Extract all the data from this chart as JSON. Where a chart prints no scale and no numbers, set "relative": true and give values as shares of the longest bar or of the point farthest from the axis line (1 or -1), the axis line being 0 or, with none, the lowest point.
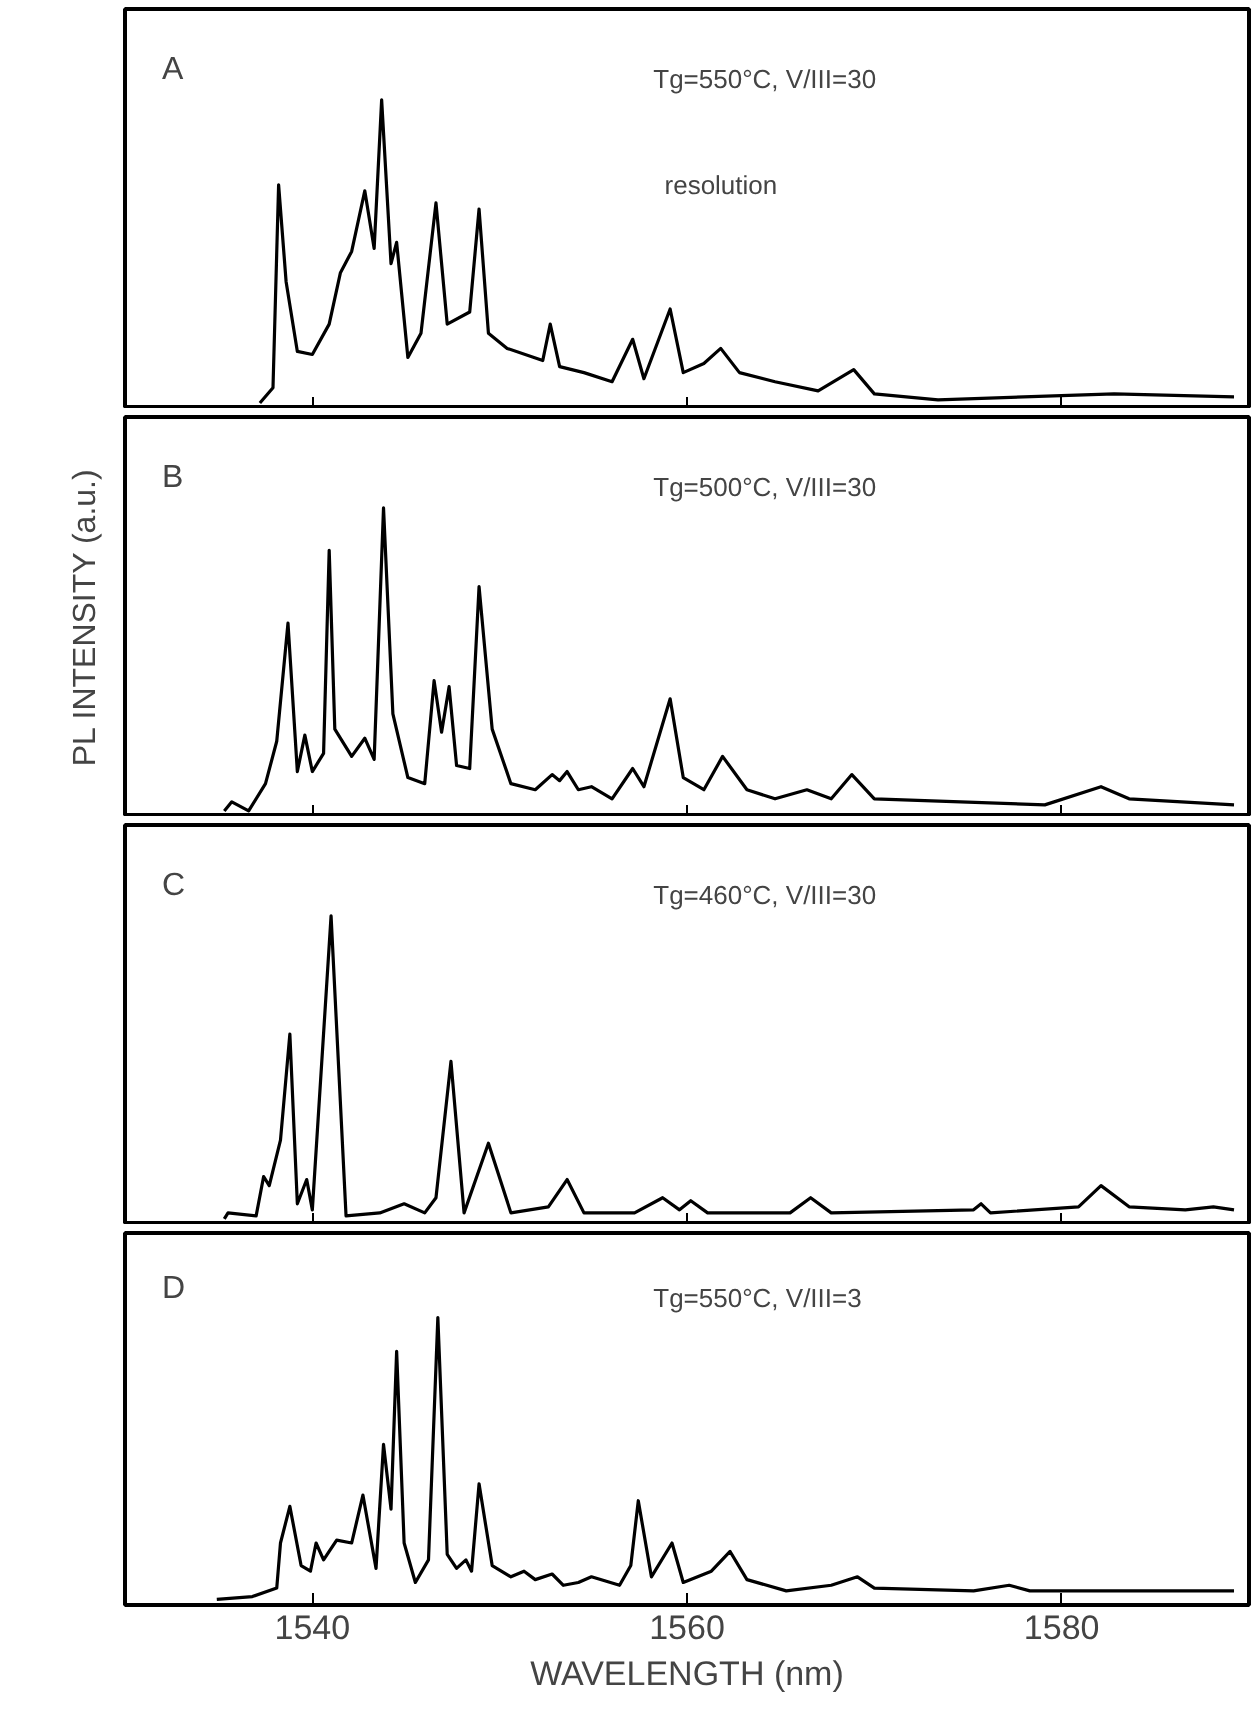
{
  "chart_data": [
    {
      "type": "line",
      "relative": true,
      "xlim": [
        1530,
        1590
      ],
      "xticks": [
        1540,
        1560,
        1580
      ],
      "tick_labels": false,
      "annotations": [
        "A",
        "Tg=550°C, V/III=30",
        "resolution"
      ],
      "series": [
        {
          "color": "#000000",
          "x": [
            1537.2,
            1537.9,
            1538.2,
            1538.6,
            1539.2,
            1540.0,
            1540.9,
            1541.5,
            1542.1,
            1542.8,
            1543.3,
            1543.7,
            1544.2,
            1544.5,
            1545.1,
            1545.8,
            1546.6,
            1547.2,
            1548.4,
            1548.9,
            1549.4,
            1550.4,
            1552.3,
            1552.7,
            1553.2,
            1554.5,
            1556.0,
            1557.1,
            1557.7,
            1559.1,
            1559.8,
            1560.9,
            1561.8,
            1562.8,
            1564.7,
            1567.0,
            1568.9,
            1570.0,
            1573.4,
            1582.8,
            1589.2
          ],
          "values": [
            0,
            0.05,
            0.72,
            0.4,
            0.17,
            0.16,
            0.26,
            0.43,
            0.5,
            0.7,
            0.51,
            1.0,
            0.46,
            0.53,
            0.15,
            0.23,
            0.66,
            0.26,
            0.3,
            0.64,
            0.23,
            0.18,
            0.14,
            0.26,
            0.12,
            0.1,
            0.07,
            0.21,
            0.08,
            0.31,
            0.1,
            0.13,
            0.18,
            0.1,
            0.07,
            0.04,
            0.11,
            0.03,
            0.01,
            0.03,
            0.02
          ]
        }
      ]
    },
    {
      "type": "line",
      "relative": true,
      "xlim": [
        1530,
        1590
      ],
      "xticks": [
        1540,
        1560,
        1580
      ],
      "tick_labels": false,
      "ylabel": "PL INTENSITY (a.u.)",
      "annotations": [
        "B",
        "Tg=500°C, V/III=30"
      ],
      "series": [
        {
          "color": "#000000",
          "x": [
            1535.3,
            1535.7,
            1536.6,
            1537.5,
            1538.1,
            1538.7,
            1539.2,
            1539.6,
            1540.0,
            1540.6,
            1540.9,
            1541.2,
            1542.1,
            1542.8,
            1543.3,
            1543.8,
            1544.3,
            1545.1,
            1546.0,
            1546.5,
            1546.9,
            1547.3,
            1547.7,
            1548.4,
            1548.9,
            1549.6,
            1550.6,
            1551.9,
            1552.8,
            1553.2,
            1553.6,
            1554.2,
            1554.9,
            1556.0,
            1557.1,
            1557.7,
            1559.1,
            1559.8,
            1560.9,
            1561.9,
            1563.2,
            1564.7,
            1566.4,
            1567.7,
            1568.8,
            1570.0,
            1579.1,
            1582.1,
            1583.6,
            1589.2
          ],
          "values": [
            0,
            0.03,
            0,
            0.09,
            0.23,
            0.62,
            0.13,
            0.25,
            0.13,
            0.19,
            0.86,
            0.27,
            0.18,
            0.24,
            0.17,
            1.0,
            0.32,
            0.11,
            0.09,
            0.43,
            0.26,
            0.41,
            0.15,
            0.14,
            0.74,
            0.27,
            0.09,
            0.07,
            0.12,
            0.1,
            0.13,
            0.07,
            0.08,
            0.04,
            0.14,
            0.08,
            0.37,
            0.11,
            0.07,
            0.18,
            0.07,
            0.04,
            0.07,
            0.04,
            0.12,
            0.04,
            0.02,
            0.08,
            0.04,
            0.02
          ]
        }
      ]
    },
    {
      "type": "line",
      "relative": true,
      "xlim": [
        1530,
        1590
      ],
      "xticks": [
        1540,
        1560,
        1580
      ],
      "tick_labels": false,
      "annotations": [
        "C",
        "Tg=460°C, V/III=30"
      ],
      "series": [
        {
          "color": "#000000",
          "x": [
            1535.3,
            1535.5,
            1537.0,
            1537.4,
            1537.7,
            1538.3,
            1538.8,
            1539.2,
            1539.7,
            1540.0,
            1541.0,
            1541.8,
            1543.6,
            1544.9,
            1546.0,
            1546.6,
            1547.4,
            1548.1,
            1549.4,
            1550.6,
            1552.6,
            1553.6,
            1554.5,
            1557.2,
            1558.7,
            1559.6,
            1560.2,
            1561.1,
            1565.5,
            1566.6,
            1567.7,
            1575.3,
            1575.7,
            1576.2,
            1580.9,
            1582.1,
            1583.6,
            1586.6,
            1588.1,
            1589.2
          ],
          "values": [
            0,
            0.02,
            0.01,
            0.14,
            0.11,
            0.26,
            0.61,
            0.05,
            0.13,
            0.03,
            1.0,
            0.01,
            0.02,
            0.05,
            0.02,
            0.07,
            0.52,
            0.02,
            0.25,
            0.02,
            0.04,
            0.13,
            0.02,
            0.02,
            0.07,
            0.03,
            0.06,
            0.02,
            0.02,
            0.07,
            0.02,
            0.03,
            0.05,
            0.02,
            0.04,
            0.11,
            0.04,
            0.03,
            0.04,
            0.03
          ]
        }
      ]
    },
    {
      "type": "line",
      "relative": true,
      "xlim": [
        1530,
        1590
      ],
      "xticks": [
        1540,
        1560,
        1580
      ],
      "tick_labels": "x",
      "xlabel": "WAVELENGTH (nm)",
      "annotations": [
        "D",
        "Tg=550°C, V/III=3"
      ],
      "series": [
        {
          "color": "#000000",
          "x": [
            1534.9,
            1536.8,
            1538.1,
            1538.3,
            1538.8,
            1539.4,
            1539.9,
            1540.2,
            1540.6,
            1540.9,
            1541.3,
            1542.1,
            1542.7,
            1543.4,
            1543.8,
            1544.2,
            1544.5,
            1544.9,
            1545.5,
            1546.2,
            1546.7,
            1547.2,
            1547.7,
            1548.2,
            1548.5,
            1548.9,
            1549.6,
            1550.6,
            1551.3,
            1551.9,
            1552.8,
            1553.4,
            1554.2,
            1554.9,
            1556.4,
            1557.0,
            1557.4,
            1558.1,
            1559.2,
            1559.8,
            1561.3,
            1562.3,
            1563.2,
            1565.3,
            1567.7,
            1569.1,
            1570.0,
            1575.3,
            1577.2,
            1578.3,
            1589.2
          ],
          "values": [
            0,
            0.01,
            0.04,
            0.2,
            0.33,
            0.12,
            0.1,
            0.2,
            0.14,
            0.17,
            0.21,
            0.2,
            0.37,
            0.11,
            0.55,
            0.32,
            0.88,
            0.2,
            0.06,
            0.14,
            1.0,
            0.16,
            0.11,
            0.14,
            0.1,
            0.41,
            0.12,
            0.08,
            0.1,
            0.07,
            0.09,
            0.05,
            0.06,
            0.08,
            0.05,
            0.12,
            0.35,
            0.08,
            0.2,
            0.06,
            0.1,
            0.17,
            0.07,
            0.03,
            0.05,
            0.08,
            0.04,
            0.03,
            0.05,
            0.03,
            0.03
          ]
        }
      ]
    }
  ]
}
